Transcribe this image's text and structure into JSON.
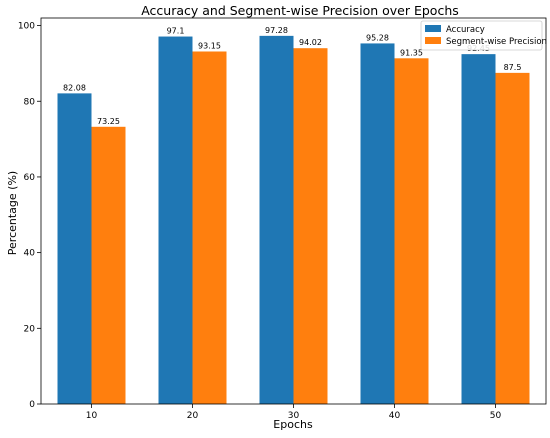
{
  "chart_data": {
    "type": "bar",
    "title": "Accuracy and Segment-wise Precision over Epochs",
    "xlabel": "Epochs",
    "ylabel": "Percentage (%)",
    "categories": [
      "10",
      "20",
      "30",
      "40",
      "50"
    ],
    "series": [
      {
        "name": "Accuracy",
        "values": [
          82.08,
          97.1,
          97.28,
          95.28,
          92.45
        ],
        "color": "#1f77b4"
      },
      {
        "name": "Segment-wise Precision",
        "values": [
          73.25,
          93.15,
          94.02,
          91.35,
          87.5
        ],
        "color": "#ff7f0e"
      }
    ],
    "ylim": [
      0,
      102
    ],
    "yticks": [
      0,
      20,
      40,
      60,
      80,
      100
    ],
    "grid": false,
    "legend_position": "top-right"
  }
}
